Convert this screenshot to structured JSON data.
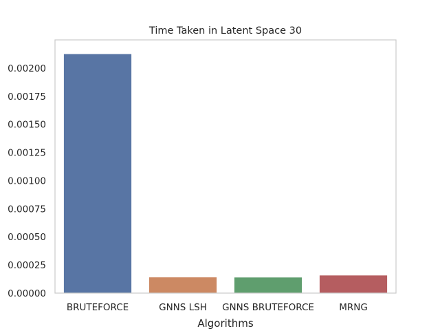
{
  "chart_data": {
    "type": "bar",
    "title": "Time Taken in Latent Space 30",
    "xlabel": "Algorithms",
    "ylabel": "",
    "categories": [
      "BRUTEFORCE",
      "GNNS LSH",
      "GNNS BRUTEFORCE",
      "MRNG"
    ],
    "values": [
      0.002127,
      0.000143,
      0.000142,
      0.00016
    ],
    "ylim": [
      0,
      0.00225
    ],
    "yticks": [
      "0.00000",
      "0.00025",
      "0.00050",
      "0.00075",
      "0.00100",
      "0.00125",
      "0.00150",
      "0.00175",
      "0.00200"
    ],
    "ytick_values": [
      0,
      0.00025,
      0.0005,
      0.00075,
      0.001,
      0.00125,
      0.0015,
      0.00175,
      0.002
    ],
    "colors": [
      "#5875a4",
      "#cc8963",
      "#5f9e6e",
      "#b55d60"
    ],
    "grid": false,
    "legend": "none"
  }
}
